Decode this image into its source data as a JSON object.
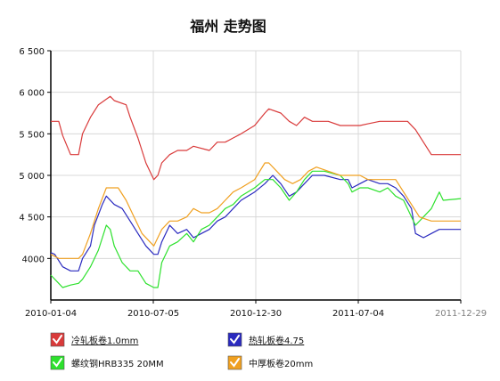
{
  "chart_data": {
    "type": "line",
    "title": "福州 走势图",
    "xlabel": "",
    "ylabel": "",
    "x_tick_labels": [
      "2010-01-04",
      "2010-07-05",
      "2010-12-30",
      "2011-07-04",
      "2011-12-29"
    ],
    "x_range": [
      "2010-01-04",
      "2011-12-29"
    ],
    "ylim": [
      3500,
      6500
    ],
    "y_ticks": [
      4000,
      4500,
      5000,
      5500,
      6000,
      6500
    ],
    "y_tick_labels": [
      "4000",
      "4 500",
      "5 000",
      "5 500",
      "6 000",
      "6 500"
    ],
    "grid": true,
    "legend_position": "bottom",
    "series": [
      {
        "name": "冷轧板卷1.0mm",
        "color": "#d93a3a",
        "underline": true,
        "points": [
          [
            "2010-01-04",
            5650
          ],
          [
            "2010-01-18",
            5650
          ],
          [
            "2010-01-25",
            5480
          ],
          [
            "2010-02-08",
            5250
          ],
          [
            "2010-02-22",
            5250
          ],
          [
            "2010-03-01",
            5500
          ],
          [
            "2010-03-15",
            5700
          ],
          [
            "2010-03-29",
            5850
          ],
          [
            "2010-04-19",
            5950
          ],
          [
            "2010-04-26",
            5900
          ],
          [
            "2010-05-17",
            5850
          ],
          [
            "2010-05-24",
            5700
          ],
          [
            "2010-06-07",
            5450
          ],
          [
            "2010-06-21",
            5150
          ],
          [
            "2010-07-05",
            4950
          ],
          [
            "2010-07-12",
            5000
          ],
          [
            "2010-07-19",
            5150
          ],
          [
            "2010-08-02",
            5250
          ],
          [
            "2010-08-16",
            5300
          ],
          [
            "2010-09-01",
            5300
          ],
          [
            "2010-09-13",
            5350
          ],
          [
            "2010-10-11",
            5300
          ],
          [
            "2010-10-25",
            5400
          ],
          [
            "2010-11-08",
            5400
          ],
          [
            "2010-11-22",
            5450
          ],
          [
            "2010-12-06",
            5500
          ],
          [
            "2010-12-30",
            5600
          ],
          [
            "2011-01-17",
            5750
          ],
          [
            "2011-01-24",
            5800
          ],
          [
            "2011-02-14",
            5750
          ],
          [
            "2011-03-01",
            5650
          ],
          [
            "2011-03-14",
            5600
          ],
          [
            "2011-03-28",
            5700
          ],
          [
            "2011-04-11",
            5650
          ],
          [
            "2011-05-09",
            5650
          ],
          [
            "2011-05-30",
            5600
          ],
          [
            "2011-06-20",
            5600
          ],
          [
            "2011-07-04",
            5600
          ],
          [
            "2011-07-18",
            5620
          ],
          [
            "2011-08-08",
            5650
          ],
          [
            "2011-09-26",
            5650
          ],
          [
            "2011-10-10",
            5550
          ],
          [
            "2011-10-24",
            5400
          ],
          [
            "2011-11-07",
            5250
          ],
          [
            "2011-12-29",
            5250
          ]
        ]
      },
      {
        "name": "热轧板卷4.75",
        "color": "#2a2abf",
        "underline": true,
        "points": [
          [
            "2010-01-04",
            4070
          ],
          [
            "2010-01-11",
            4050
          ],
          [
            "2010-01-25",
            3900
          ],
          [
            "2010-02-08",
            3850
          ],
          [
            "2010-02-22",
            3850
          ],
          [
            "2010-03-01",
            4000
          ],
          [
            "2010-03-15",
            4150
          ],
          [
            "2010-03-22",
            4400
          ],
          [
            "2010-04-05",
            4650
          ],
          [
            "2010-04-12",
            4750
          ],
          [
            "2010-04-26",
            4650
          ],
          [
            "2010-05-10",
            4600
          ],
          [
            "2010-05-24",
            4450
          ],
          [
            "2010-06-07",
            4300
          ],
          [
            "2010-06-21",
            4150
          ],
          [
            "2010-07-05",
            4050
          ],
          [
            "2010-07-12",
            4050
          ],
          [
            "2010-07-19",
            4200
          ],
          [
            "2010-08-02",
            4400
          ],
          [
            "2010-08-16",
            4300
          ],
          [
            "2010-09-01",
            4350
          ],
          [
            "2010-09-13",
            4250
          ],
          [
            "2010-09-27",
            4300
          ],
          [
            "2010-10-11",
            4350
          ],
          [
            "2010-10-25",
            4450
          ],
          [
            "2010-11-08",
            4500
          ],
          [
            "2010-11-22",
            4600
          ],
          [
            "2010-12-06",
            4700
          ],
          [
            "2010-12-30",
            4800
          ],
          [
            "2011-01-17",
            4900
          ],
          [
            "2011-01-31",
            5000
          ],
          [
            "2011-02-14",
            4900
          ],
          [
            "2011-03-01",
            4750
          ],
          [
            "2011-03-14",
            4800
          ],
          [
            "2011-03-28",
            4900
          ],
          [
            "2011-04-11",
            5000
          ],
          [
            "2011-05-02",
            5000
          ],
          [
            "2011-05-30",
            4950
          ],
          [
            "2011-06-13",
            4950
          ],
          [
            "2011-06-20",
            4850
          ],
          [
            "2011-07-04",
            4900
          ],
          [
            "2011-07-18",
            4950
          ],
          [
            "2011-08-08",
            4900
          ],
          [
            "2011-08-22",
            4900
          ],
          [
            "2011-09-05",
            4850
          ],
          [
            "2011-09-19",
            4750
          ],
          [
            "2011-10-03",
            4600
          ],
          [
            "2011-10-10",
            4300
          ],
          [
            "2011-10-24",
            4250
          ],
          [
            "2011-11-07",
            4300
          ],
          [
            "2011-11-21",
            4350
          ],
          [
            "2011-12-29",
            4350
          ]
        ]
      },
      {
        "name": "螺纹钢HRB335 20MM",
        "color": "#2de12d",
        "underline": false,
        "points": [
          [
            "2010-01-04",
            3800
          ],
          [
            "2010-01-18",
            3700
          ],
          [
            "2010-01-25",
            3650
          ],
          [
            "2010-02-08",
            3680
          ],
          [
            "2010-02-22",
            3700
          ],
          [
            "2010-03-01",
            3750
          ],
          [
            "2010-03-15",
            3900
          ],
          [
            "2010-03-29",
            4100
          ],
          [
            "2010-04-12",
            4400
          ],
          [
            "2010-04-19",
            4350
          ],
          [
            "2010-04-26",
            4150
          ],
          [
            "2010-05-10",
            3950
          ],
          [
            "2010-05-24",
            3850
          ],
          [
            "2010-06-07",
            3850
          ],
          [
            "2010-06-21",
            3700
          ],
          [
            "2010-07-05",
            3650
          ],
          [
            "2010-07-12",
            3650
          ],
          [
            "2010-07-19",
            3950
          ],
          [
            "2010-08-02",
            4150
          ],
          [
            "2010-08-16",
            4200
          ],
          [
            "2010-09-01",
            4300
          ],
          [
            "2010-09-13",
            4200
          ],
          [
            "2010-09-27",
            4350
          ],
          [
            "2010-10-11",
            4400
          ],
          [
            "2010-10-25",
            4500
          ],
          [
            "2010-11-08",
            4600
          ],
          [
            "2010-11-22",
            4650
          ],
          [
            "2010-12-06",
            4750
          ],
          [
            "2010-12-30",
            4850
          ],
          [
            "2011-01-17",
            4950
          ],
          [
            "2011-01-31",
            4950
          ],
          [
            "2011-02-14",
            4850
          ],
          [
            "2011-03-01",
            4700
          ],
          [
            "2011-03-14",
            4800
          ],
          [
            "2011-03-28",
            4950
          ],
          [
            "2011-04-11",
            5050
          ],
          [
            "2011-05-02",
            5050
          ],
          [
            "2011-05-30",
            5000
          ],
          [
            "2011-06-13",
            4900
          ],
          [
            "2011-06-20",
            4800
          ],
          [
            "2011-07-04",
            4850
          ],
          [
            "2011-07-18",
            4850
          ],
          [
            "2011-08-08",
            4800
          ],
          [
            "2011-08-22",
            4850
          ],
          [
            "2011-09-05",
            4750
          ],
          [
            "2011-09-19",
            4700
          ],
          [
            "2011-10-03",
            4500
          ],
          [
            "2011-10-10",
            4400
          ],
          [
            "2011-10-24",
            4500
          ],
          [
            "2011-11-07",
            4600
          ],
          [
            "2011-11-21",
            4800
          ],
          [
            "2011-11-28",
            4700
          ],
          [
            "2011-12-29",
            4720
          ]
        ]
      },
      {
        "name": "中厚板卷20mm",
        "color": "#f0a020",
        "underline": false,
        "points": [
          [
            "2010-01-04",
            4050
          ],
          [
            "2010-01-18",
            4000
          ],
          [
            "2010-02-01",
            4000
          ],
          [
            "2010-02-22",
            4000
          ],
          [
            "2010-03-01",
            4050
          ],
          [
            "2010-03-15",
            4300
          ],
          [
            "2010-03-29",
            4600
          ],
          [
            "2010-04-12",
            4850
          ],
          [
            "2010-05-03",
            4850
          ],
          [
            "2010-05-17",
            4700
          ],
          [
            "2010-05-31",
            4500
          ],
          [
            "2010-06-14",
            4300
          ],
          [
            "2010-06-28",
            4200
          ],
          [
            "2010-07-05",
            4150
          ],
          [
            "2010-07-19",
            4350
          ],
          [
            "2010-08-02",
            4450
          ],
          [
            "2010-08-16",
            4450
          ],
          [
            "2010-09-01",
            4500
          ],
          [
            "2010-09-13",
            4600
          ],
          [
            "2010-09-27",
            4550
          ],
          [
            "2010-10-11",
            4550
          ],
          [
            "2010-10-25",
            4600
          ],
          [
            "2010-11-08",
            4700
          ],
          [
            "2010-11-22",
            4800
          ],
          [
            "2010-12-06",
            4850
          ],
          [
            "2010-12-30",
            4950
          ],
          [
            "2011-01-17",
            5150
          ],
          [
            "2011-01-24",
            5150
          ],
          [
            "2011-02-07",
            5050
          ],
          [
            "2011-02-21",
            4950
          ],
          [
            "2011-03-07",
            4900
          ],
          [
            "2011-03-21",
            4950
          ],
          [
            "2011-04-04",
            5050
          ],
          [
            "2011-04-18",
            5100
          ],
          [
            "2011-05-09",
            5050
          ],
          [
            "2011-05-30",
            5000
          ],
          [
            "2011-06-20",
            5000
          ],
          [
            "2011-07-04",
            5000
          ],
          [
            "2011-07-18",
            4950
          ],
          [
            "2011-08-08",
            4950
          ],
          [
            "2011-09-05",
            4950
          ],
          [
            "2011-09-19",
            4800
          ],
          [
            "2011-10-03",
            4650
          ],
          [
            "2011-10-17",
            4500
          ],
          [
            "2011-11-07",
            4450
          ],
          [
            "2011-11-21",
            4450
          ],
          [
            "2011-12-29",
            4450
          ]
        ]
      }
    ]
  }
}
